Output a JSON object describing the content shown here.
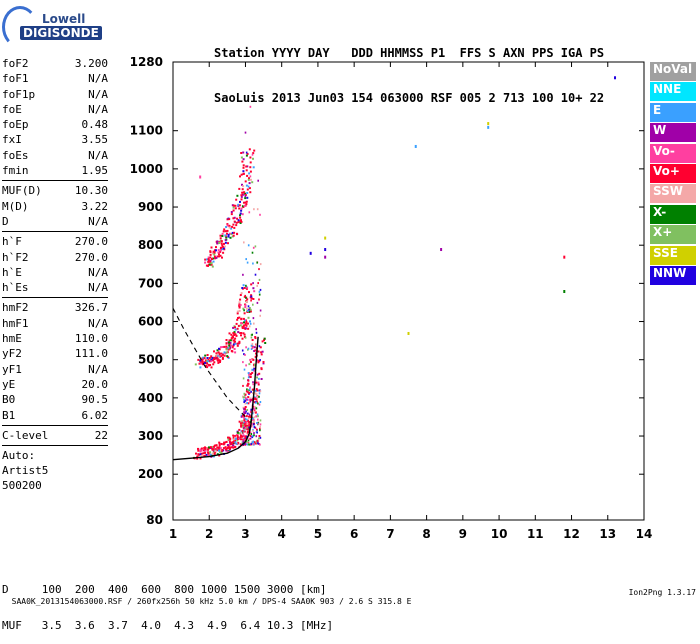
{
  "logo": {
    "line1": "Lowell",
    "line2": "DIGISONDE"
  },
  "header": {
    "line1": "Station YYYY DAY   DDD HHMMSS P1  FFS S AXN PPS IGA PS",
    "line2": "SaoLuis 2013 Jun03 154 063000 RSF 005 2 713 100 10+ 22"
  },
  "params": [
    {
      "name": "foF2",
      "value": "3.200"
    },
    {
      "name": "foF1",
      "value": "N/A"
    },
    {
      "name": "foF1p",
      "value": "N/A"
    },
    {
      "name": "foE",
      "value": "N/A"
    },
    {
      "name": "foEp",
      "value": "0.48"
    },
    {
      "name": "fxI",
      "value": "3.55"
    },
    {
      "name": "foEs",
      "value": "N/A"
    },
    {
      "name": "fmin",
      "value": "1.95"
    },
    {
      "sep": true
    },
    {
      "name": "MUF(D)",
      "value": "10.30"
    },
    {
      "name": "M(D)",
      "value": "3.22"
    },
    {
      "name": "D",
      "value": "N/A"
    },
    {
      "sep": true
    },
    {
      "name": "h`F",
      "value": "270.0"
    },
    {
      "name": "h`F2",
      "value": "270.0"
    },
    {
      "name": "h`E",
      "value": "N/A"
    },
    {
      "name": "h`Es",
      "value": "N/A"
    },
    {
      "sep": true
    },
    {
      "name": "hmF2",
      "value": "326.7"
    },
    {
      "name": "hmF1",
      "value": "N/A"
    },
    {
      "name": "hmE",
      "value": "110.0"
    },
    {
      "name": "yF2",
      "value": "111.0"
    },
    {
      "name": "yF1",
      "value": "N/A"
    },
    {
      "name": "yE",
      "value": "20.0"
    },
    {
      "name": "B0",
      "value": "90.5"
    },
    {
      "name": "B1",
      "value": "6.02"
    },
    {
      "sep": true
    },
    {
      "name": "C-level",
      "value": "22"
    },
    {
      "sep": true
    }
  ],
  "auto": [
    "Auto:",
    "Artist5",
    "500200"
  ],
  "legend": [
    {
      "label": "NoVal",
      "color": "#a0a0a0"
    },
    {
      "label": "NNE",
      "color": "#00e6ff"
    },
    {
      "label": "E",
      "color": "#3aa0ff"
    },
    {
      "label": "W",
      "color": "#a000a8"
    },
    {
      "label": "Vo-",
      "color": "#ff3fa0"
    },
    {
      "label": "Vo+",
      "color": "#ff0030"
    },
    {
      "label": "SSW",
      "color": "#f4a8a8"
    },
    {
      "label": "X-",
      "color": "#008000"
    },
    {
      "label": "X+",
      "color": "#80c060"
    },
    {
      "label": "SSE",
      "color": "#d0d000"
    },
    {
      "label": "NNW",
      "color": "#2000e0"
    }
  ],
  "footer": {
    "row1": "D     100  200  400  600  800 1000 1500 3000 [km]",
    "row2": "MUF   3.5  3.6  3.7  4.0  4.3  4.9  6.4 10.3 [MHz]",
    "row3": "SAA0K_2013154063000.RSF / 260fx256h 50 kHz 5.0 km / DPS-4 SAA0K 903 / 2.6 S 315.8 E",
    "version": "Ion2Png 1.3.17"
  },
  "chart_data": {
    "type": "scatter",
    "xlabel": "",
    "ylabel": "",
    "xlim": [
      1,
      14
    ],
    "ylim": [
      80,
      1280
    ],
    "x_ticks": [
      1,
      2,
      3,
      4,
      5,
      6,
      7,
      8,
      9,
      10,
      11,
      12,
      13,
      14
    ],
    "y_ticks": [
      80,
      200,
      300,
      400,
      500,
      600,
      700,
      800,
      900,
      1000,
      1100,
      1280
    ],
    "traces": [
      {
        "name": "F2-trace",
        "color": "#ff0030",
        "points": [
          [
            1.7,
            255
          ],
          [
            2.0,
            260
          ],
          [
            2.3,
            268
          ],
          [
            2.6,
            280
          ],
          [
            2.8,
            295
          ],
          [
            2.95,
            320
          ],
          [
            3.05,
            350
          ],
          [
            3.15,
            400
          ],
          [
            3.25,
            470
          ],
          [
            3.35,
            560
          ]
        ]
      },
      {
        "name": "multi-hop-2",
        "color": "#ff0030",
        "points": [
          [
            1.75,
            490
          ],
          [
            2.0,
            500
          ],
          [
            2.3,
            515
          ],
          [
            2.6,
            540
          ],
          [
            2.8,
            575
          ],
          [
            2.95,
            620
          ],
          [
            3.05,
            700
          ]
        ]
      },
      {
        "name": "multi-hop-3",
        "color": "#ff0030",
        "points": [
          [
            1.9,
            750
          ],
          [
            2.2,
            790
          ],
          [
            2.5,
            830
          ],
          [
            2.75,
            880
          ],
          [
            2.95,
            950
          ],
          [
            3.05,
            1050
          ]
        ]
      }
    ],
    "scatter_dots": [
      {
        "x": 4.8,
        "y": 780,
        "color": "#2000e0"
      },
      {
        "x": 5.2,
        "y": 820,
        "color": "#d0d000"
      },
      {
        "x": 5.2,
        "y": 790,
        "color": "#2000e0"
      },
      {
        "x": 5.2,
        "y": 770,
        "color": "#a000a8"
      },
      {
        "x": 7.7,
        "y": 1060,
        "color": "#3aa0ff"
      },
      {
        "x": 9.7,
        "y": 1110,
        "color": "#3aa0ff"
      },
      {
        "x": 9.7,
        "y": 1120,
        "color": "#d0d000"
      },
      {
        "x": 8.4,
        "y": 790,
        "color": "#a000a8"
      },
      {
        "x": 7.5,
        "y": 570,
        "color": "#d0d000"
      },
      {
        "x": 11.8,
        "y": 770,
        "color": "#ff0030"
      },
      {
        "x": 11.8,
        "y": 680,
        "color": "#008000"
      },
      {
        "x": 13.2,
        "y": 1240,
        "color": "#2000e0"
      },
      {
        "x": 1.75,
        "y": 980,
        "color": "#ff3fa0"
      }
    ],
    "profile_curve": [
      [
        1,
        238
      ],
      [
        1.5,
        242
      ],
      [
        2.0,
        246
      ],
      [
        2.5,
        255
      ],
      [
        2.8,
        268
      ],
      [
        3.0,
        285
      ],
      [
        3.1,
        305
      ],
      [
        3.15,
        330
      ],
      [
        3.2,
        380
      ],
      [
        3.25,
        430
      ],
      [
        3.3,
        500
      ],
      [
        3.35,
        560
      ]
    ],
    "dashed_curve": [
      [
        1,
        635
      ],
      [
        1.3,
        580
      ],
      [
        1.6,
        530
      ],
      [
        1.9,
        480
      ],
      [
        2.2,
        440
      ],
      [
        2.5,
        400
      ],
      [
        2.8,
        370
      ],
      [
        3.0,
        350
      ]
    ]
  }
}
